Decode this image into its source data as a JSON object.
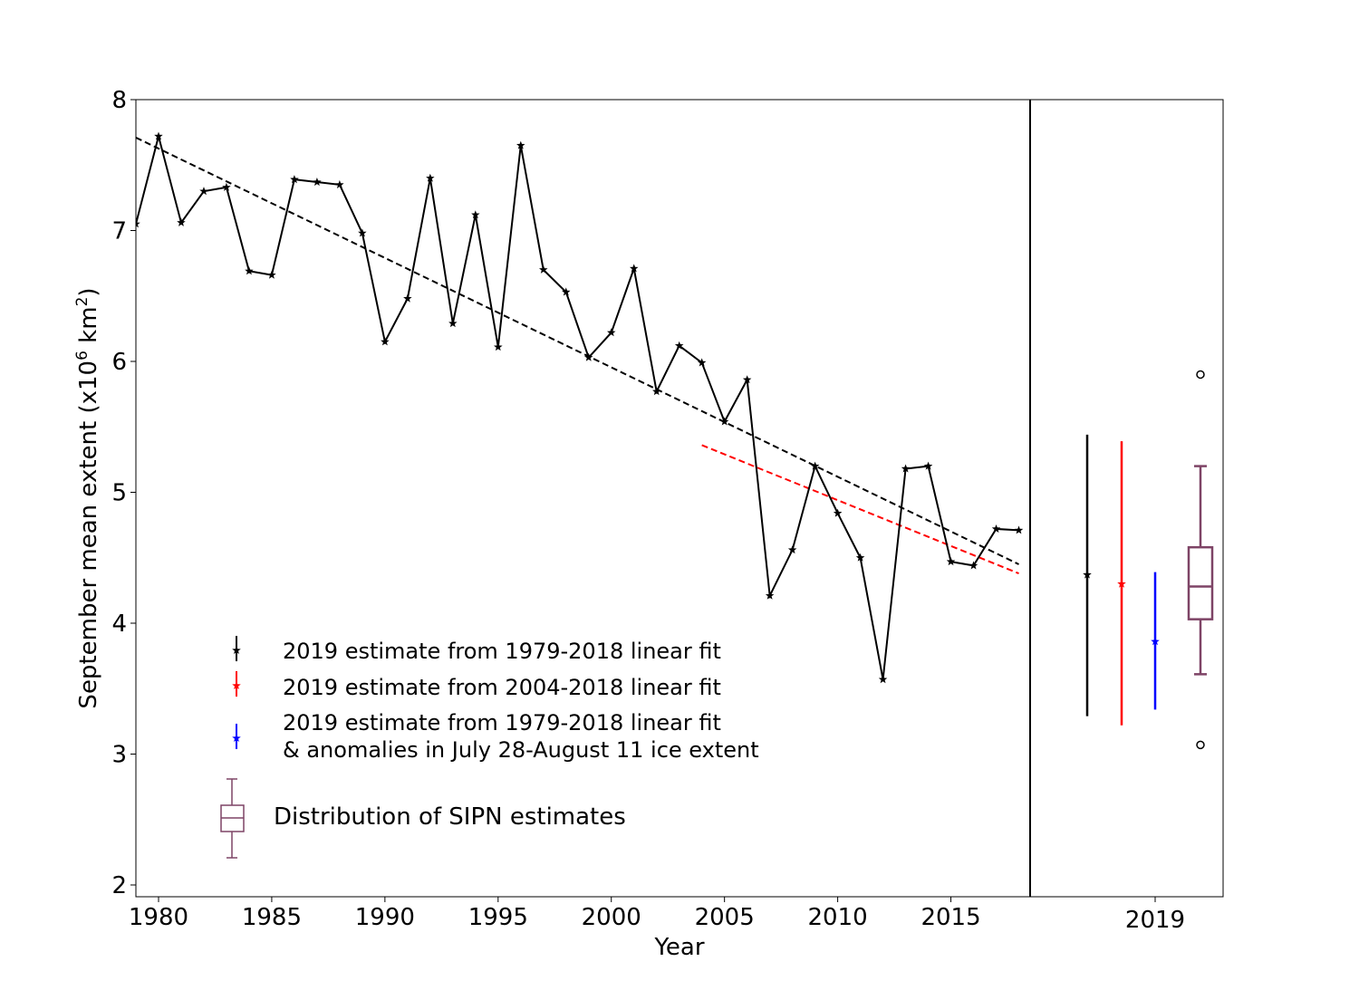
{
  "chart_data": [
    {
      "type": "line",
      "xlabel": "Year",
      "ylabel": "September mean extent (x10^6 km^2)",
      "ylabel_parts": {
        "main": "September mean extent (x10",
        "exp1": "6",
        "mid": " km",
        "exp2": "2",
        "end": ")"
      },
      "xlim": [
        1979,
        2018.5
      ],
      "ylim": [
        1.91,
        8
      ],
      "xticks": [
        1980,
        1985,
        1990,
        1995,
        2000,
        2005,
        2010,
        2015
      ],
      "yticks": [
        2,
        3,
        4,
        5,
        6,
        7,
        8
      ],
      "grid": false,
      "series": [
        {
          "style": "black line with star markers",
          "color": "#000000",
          "x": [
            1979,
            1980,
            1981,
            1982,
            1983,
            1984,
            1985,
            1986,
            1987,
            1988,
            1989,
            1990,
            1991,
            1992,
            1993,
            1994,
            1995,
            1996,
            1997,
            1998,
            1999,
            2000,
            2001,
            2002,
            2003,
            2004,
            2005,
            2006,
            2007,
            2008,
            2009,
            2010,
            2011,
            2012,
            2013,
            2014,
            2015,
            2016,
            2017,
            2018
          ],
          "y": [
            7.05,
            7.72,
            7.06,
            7.3,
            7.33,
            6.69,
            6.66,
            7.39,
            7.37,
            7.35,
            6.98,
            6.15,
            6.48,
            7.4,
            6.29,
            7.12,
            6.11,
            7.65,
            6.7,
            6.53,
            6.03,
            6.22,
            6.71,
            5.77,
            6.12,
            5.99,
            5.54,
            5.86,
            4.21,
            4.56,
            5.2,
            4.84,
            4.5,
            3.57,
            5.18,
            5.2,
            4.47,
            4.44,
            4.72,
            4.71
          ]
        },
        {
          "style": "dashed linear fit 1979-2018",
          "color": "#000000",
          "x": [
            1979,
            2018
          ],
          "y": [
            7.71,
            4.45
          ]
        },
        {
          "style": "dashed linear fit 2004-2018",
          "color": "#ff0000",
          "x": [
            2004,
            2018
          ],
          "y": [
            5.36,
            4.38
          ]
        }
      ],
      "legend": {
        "placement": "lower-left",
        "entries": [
          {
            "label": "2019 estimate from 1979-2018 linear fit",
            "color": "#000000"
          },
          {
            "label": "2019 estimate from 2004-2018 linear fit",
            "color": "#ff0000"
          },
          {
            "label": "2019 estimate from 1979-2018 linear fit",
            "label2": "& anomalies in July 28-August 11 ice extent",
            "color": "#0000ff"
          },
          {
            "label": "Distribution of SIPN estimates",
            "color": "#7e4466"
          }
        ]
      }
    },
    {
      "type": "errorbar+box",
      "xticks": [
        "2019"
      ],
      "ylim": [
        1.91,
        8
      ],
      "errorbars": [
        {
          "estimate": 4.37,
          "low": 3.29,
          "high": 5.44,
          "color": "#000000"
        },
        {
          "estimate": 4.3,
          "low": 3.22,
          "high": 5.39,
          "color": "#ff0000"
        },
        {
          "estimate": 3.86,
          "low": 3.34,
          "high": 4.39,
          "color": "#0000ff"
        }
      ],
      "box": {
        "whisker_low": 3.61,
        "q1": 4.03,
        "median": 4.28,
        "q3": 4.58,
        "whisker_high": 5.2,
        "outliers": [
          5.9,
          3.07
        ],
        "color": "#7e4466"
      }
    }
  ]
}
